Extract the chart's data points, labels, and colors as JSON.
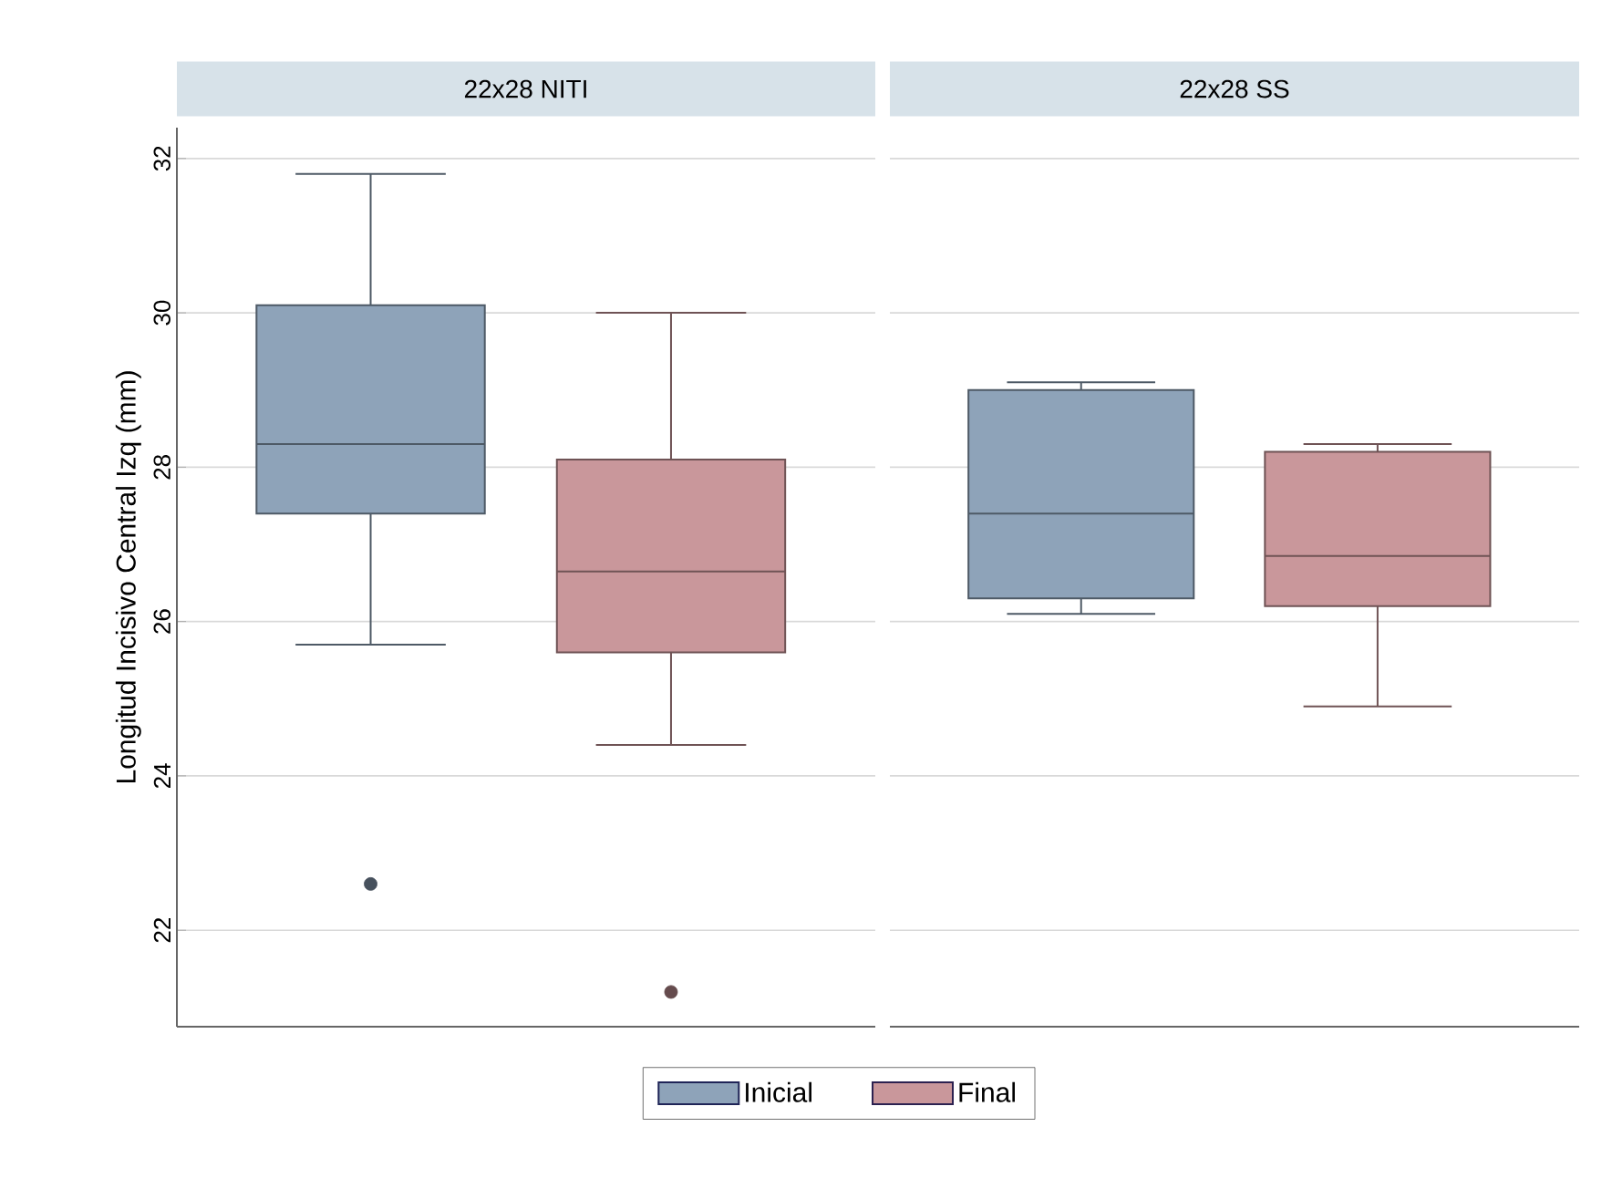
{
  "chart_data": {
    "type": "box",
    "ylabel": "Longitud Incisivo Central Izq (mm)",
    "categories": [
      "22x28 NITI",
      "22x28 SS"
    ],
    "ylim": [
      20.75,
      32.4
    ],
    "yticks": [
      22,
      24,
      26,
      28,
      30,
      32
    ],
    "grid": "y",
    "legend": "bottom",
    "series": [
      {
        "name": "Inicial",
        "color": "#8ea3b9",
        "boxes": [
          {
            "low": 25.7,
            "q1": 27.4,
            "median": 28.3,
            "q3": 30.1,
            "high": 31.8,
            "outliers": [
              22.6
            ]
          },
          {
            "low": 26.1,
            "q1": 26.3,
            "median": 27.4,
            "q3": 29.0,
            "high": 29.1
          }
        ]
      },
      {
        "name": "Final",
        "color": "#c9979b",
        "boxes": [
          {
            "low": 24.4,
            "q1": 25.6,
            "median": 26.65,
            "q3": 28.1,
            "high": 30.0,
            "outliers": [
              21.2
            ]
          },
          {
            "low": 24.9,
            "q1": 26.2,
            "median": 26.85,
            "q3": 28.2,
            "high": 28.3
          }
        ]
      }
    ]
  }
}
